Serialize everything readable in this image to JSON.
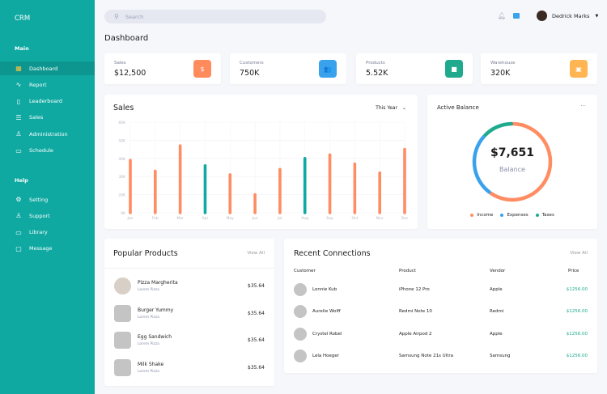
{
  "sidebar": {
    "brand": "CRM",
    "main_label": "Main",
    "help_label": "Help",
    "main_items": [
      {
        "label": "Dashboard",
        "icon": "grid-icon",
        "glyph": "▦"
      },
      {
        "label": "Report",
        "icon": "activity-icon",
        "glyph": "∿"
      },
      {
        "label": "Leaderboard",
        "icon": "clipboard-icon",
        "glyph": "▯"
      },
      {
        "label": "Sales",
        "icon": "database-icon",
        "glyph": "☰"
      },
      {
        "label": "Administration",
        "icon": "user-icon",
        "glyph": "♙"
      },
      {
        "label": "Schedule",
        "icon": "calendar-icon",
        "glyph": "▭"
      }
    ],
    "help_items": [
      {
        "label": "Setting",
        "icon": "gear-icon",
        "glyph": "⚙"
      },
      {
        "label": "Support",
        "icon": "users-icon",
        "glyph": "♙"
      },
      {
        "label": "Library",
        "icon": "folder-icon",
        "glyph": "▭"
      },
      {
        "label": "Message",
        "icon": "message-icon",
        "glyph": "▢"
      }
    ]
  },
  "header": {
    "search_placeholder": "Search",
    "user_name": "Dedrick Marks",
    "page_title": "Dashboard"
  },
  "stats": [
    {
      "label": "Sales",
      "value": "$12,500",
      "icon": "dollar-icon",
      "glyph": "$",
      "color": "#ff8a5b"
    },
    {
      "label": "Customers",
      "value": "750K",
      "icon": "users-icon",
      "glyph": "👥",
      "color": "#3aa2ec"
    },
    {
      "label": "Products",
      "value": "5.52K",
      "icon": "bag-icon",
      "glyph": "■",
      "color": "#1faa8e"
    },
    {
      "label": "Warehouse",
      "value": "320K",
      "icon": "truck-icon",
      "glyph": "▣",
      "color": "#ffb552"
    }
  ],
  "sales": {
    "title": "Sales",
    "period": "This Year"
  },
  "chart_data": [
    {
      "type": "bar",
      "title": "Sales",
      "categories": [
        "Jan",
        "Feb",
        "Mar",
        "Apr",
        "May",
        "Jun",
        "Jul",
        "Aug",
        "Sep",
        "Oct",
        "Nov",
        "Dec"
      ],
      "values": [
        39,
        33,
        47,
        36,
        31,
        20,
        34,
        40,
        42,
        37,
        32,
        45
      ],
      "unit": "K",
      "highlight": [
        "Apr",
        "Aug"
      ],
      "colors": {
        "default": "#ff8c62",
        "highlight": "#0fa9a2"
      },
      "y_ticks": [
        "0K",
        "20K",
        "30K",
        "40K",
        "50K",
        "60K"
      ],
      "y_tick_values": [
        0,
        20,
        30,
        40,
        50,
        60
      ],
      "ylim": [
        0,
        60
      ],
      "grid": true
    },
    {
      "type": "pie",
      "variant": "donut",
      "title": "Active Balance",
      "center_value": "$7,651",
      "center_label": "Balance",
      "series": [
        {
          "name": "Income",
          "value": 60,
          "color": "#ff8c62"
        },
        {
          "name": "Expenses",
          "value": 27,
          "color": "#3aa2ec"
        },
        {
          "name": "Taxes",
          "value": 13,
          "color": "#1faa8e"
        }
      ],
      "legend": "bottom"
    }
  ],
  "balance": {
    "title": "Active Balance",
    "more": "···"
  },
  "popular": {
    "title": "Popular Products",
    "view_all": "View All",
    "items": [
      {
        "name": "Pizza Margherita",
        "sub": "Lorem Pizza",
        "price": "$35.64"
      },
      {
        "name": "Burger Yummy",
        "sub": "Lorem Pizza",
        "price": "$35.64"
      },
      {
        "name": "Egg Sandwich",
        "sub": "Lorem Pizza",
        "price": "$35.64"
      },
      {
        "name": "Milk Shake",
        "sub": "Lorem Pizza",
        "price": "$35.64"
      }
    ]
  },
  "recent": {
    "title": "Recent Connections",
    "view_all": "View All",
    "headers": [
      "Customer",
      "Product",
      "Vendor",
      "Price"
    ],
    "rows": [
      [
        "Lonnie Kub",
        "iPhone 12 Pro",
        "Apple",
        "$1256.00"
      ],
      [
        "Aurelie Wolff",
        "Redmi Note 10",
        "Redmi",
        "$1256.00"
      ],
      [
        "Crystel Robel",
        "Apple Airpod 2",
        "Apple",
        "$1256.00"
      ],
      [
        "Lela Hoeger",
        "Samsung Note 21s Ultra",
        "Samsung",
        "$1256.00"
      ]
    ]
  }
}
